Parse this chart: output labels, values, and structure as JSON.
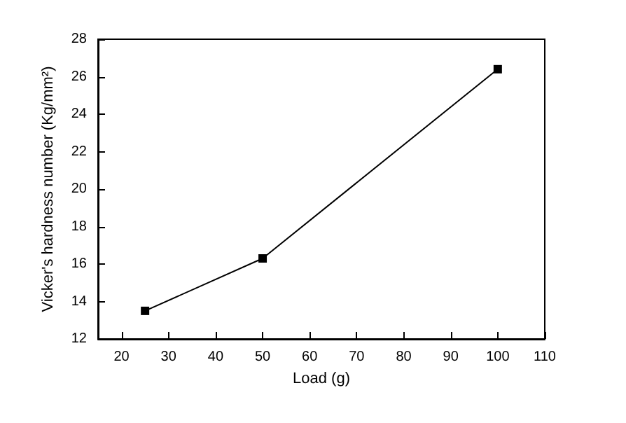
{
  "chart_data": {
    "type": "line",
    "xlabel": "Load (g)",
    "ylabel": "Vicker's hardness number (Kg/mm²)",
    "x": [
      25,
      50,
      100
    ],
    "series": [
      {
        "color": "#000000",
        "values": [
          13.5,
          16.3,
          26.4
        ]
      }
    ],
    "xlim": [
      15,
      110
    ],
    "xticks": [
      20,
      30,
      40,
      50,
      60,
      70,
      80,
      90,
      100,
      110
    ],
    "ylim": [
      12,
      28
    ],
    "yticks": [
      12,
      14,
      16,
      18,
      20,
      22,
      24,
      26,
      28
    ],
    "marker": "square",
    "line_style": "solid",
    "grid": false
  }
}
